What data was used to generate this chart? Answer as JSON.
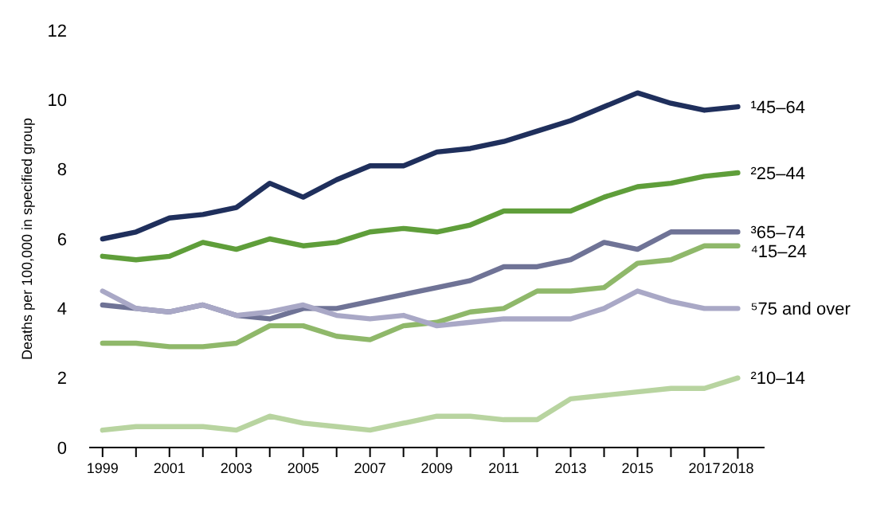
{
  "chart_data": {
    "type": "line",
    "ylabel": "Deaths per 100,000 in specified group",
    "x": [
      1999,
      2000,
      2001,
      2002,
      2003,
      2004,
      2005,
      2006,
      2007,
      2008,
      2009,
      2010,
      2011,
      2012,
      2013,
      2014,
      2015,
      2016,
      2017,
      2018
    ],
    "series": [
      {
        "name": "¹45–64",
        "color": "#1f2f5c",
        "values": [
          6.0,
          6.2,
          6.6,
          6.7,
          6.9,
          7.6,
          7.2,
          7.7,
          8.1,
          8.1,
          8.5,
          8.6,
          8.8,
          9.1,
          9.4,
          9.8,
          10.2,
          9.9,
          9.7,
          9.8
        ]
      },
      {
        "name": "²25–44",
        "color": "#5f9e3a",
        "values": [
          5.5,
          5.4,
          5.5,
          5.9,
          5.7,
          6.0,
          5.8,
          5.9,
          6.2,
          6.3,
          6.2,
          6.4,
          6.8,
          6.8,
          6.8,
          7.2,
          7.5,
          7.6,
          7.8,
          7.9
        ]
      },
      {
        "name": "³65–74",
        "color": "#6f7396",
        "values": [
          4.1,
          4.0,
          3.9,
          4.1,
          3.8,
          3.7,
          4.0,
          4.0,
          4.2,
          4.4,
          4.6,
          4.8,
          5.2,
          5.2,
          5.4,
          5.9,
          5.7,
          6.2,
          6.2,
          6.2
        ]
      },
      {
        "name": "⁴15–24",
        "color": "#8fb86a",
        "values": [
          3.0,
          3.0,
          2.9,
          2.9,
          3.0,
          3.5,
          3.5,
          3.2,
          3.1,
          3.5,
          3.6,
          3.9,
          4.0,
          4.5,
          4.5,
          4.6,
          5.3,
          5.4,
          5.8,
          5.8
        ]
      },
      {
        "name": "⁵75 and over",
        "color": "#a9a8c6",
        "values": [
          4.5,
          4.0,
          3.9,
          4.1,
          3.8,
          3.9,
          4.1,
          3.8,
          3.7,
          3.8,
          3.5,
          3.6,
          3.7,
          3.7,
          3.7,
          4.0,
          4.5,
          4.2,
          4.0,
          4.0
        ]
      },
      {
        "name": "²10–14",
        "color": "#b8d4a0",
        "values": [
          0.5,
          0.6,
          0.6,
          0.6,
          0.5,
          0.9,
          0.7,
          0.6,
          0.5,
          0.7,
          0.9,
          0.9,
          0.8,
          0.8,
          1.4,
          1.5,
          1.6,
          1.7,
          1.7,
          2.0
        ]
      }
    ],
    "xlim": [
      1998.6,
      2018.8
    ],
    "ylim": [
      0,
      12
    ],
    "yticks": [
      0,
      2,
      4,
      6,
      8,
      10,
      12
    ],
    "xticks": [
      1999,
      {
        "value": 2000,
        "label": null
      },
      2001,
      {
        "value": 2002,
        "label": null
      },
      2003,
      {
        "value": 2004,
        "label": null
      },
      2005,
      {
        "value": 2006,
        "label": null
      },
      2007,
      {
        "value": 2008,
        "label": null
      },
      2009,
      {
        "value": 2010,
        "label": null
      },
      2011,
      {
        "value": 2012,
        "label": null
      },
      2013,
      {
        "value": 2014,
        "label": null
      },
      2015,
      {
        "value": 2016,
        "label": null
      },
      2017,
      {
        "value": 2018,
        "label": "2018"
      }
    ],
    "grid": false,
    "legend": false,
    "marker": "none",
    "line_style": "solid"
  }
}
